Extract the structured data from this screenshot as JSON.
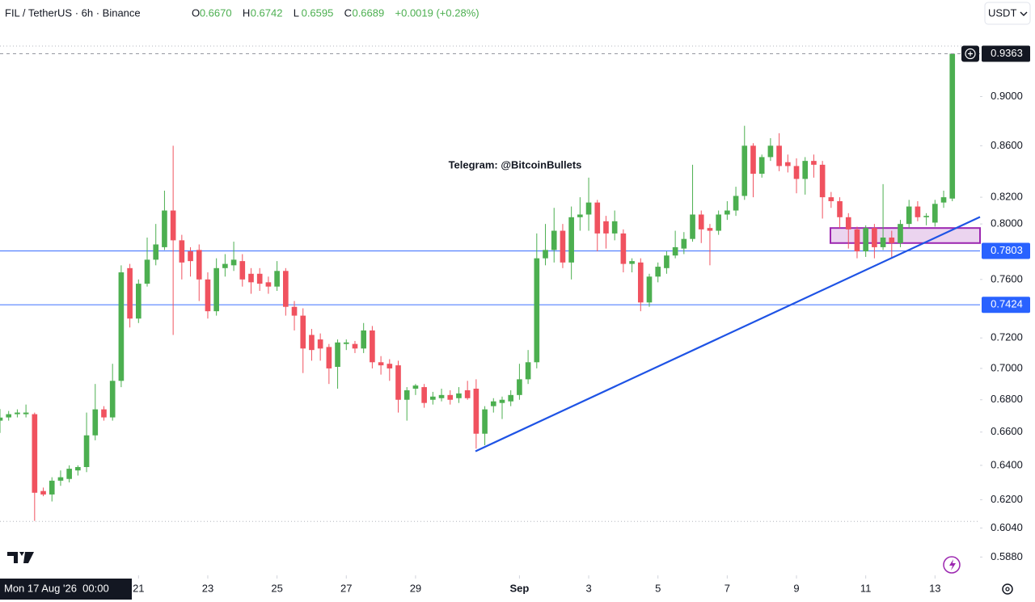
{
  "header": {
    "symbol": "FIL / TetherUS · 6h · Binance",
    "ohlc": [
      {
        "key": "O",
        "value": "0.6670"
      },
      {
        "key": "H",
        "value": "0.6742"
      },
      {
        "key": "L",
        "value": "0.6595"
      },
      {
        "key": "C",
        "value": "0.6689"
      }
    ],
    "change": "+0.0019 (+0.28%)",
    "currency": "USDT"
  },
  "chart_data": {
    "type": "candlestick",
    "log_scale": true,
    "annotation": "Telegram: @BitcoinBullets",
    "crosshair_label": "Mon 17 Aug '26  00:00",
    "up_color": "#4caf50",
    "down_color": "#f0525f",
    "xlim": [
      17,
      45.3
    ],
    "ylim": [
      0.579,
      0.984
    ],
    "xticks": [
      21,
      23,
      25,
      27,
      29,
      {
        "value": 32,
        "label": "Sep"
      },
      {
        "value": 34,
        "label": "3"
      },
      {
        "value": 36,
        "label": "5"
      },
      {
        "value": 38,
        "label": "7"
      },
      {
        "value": 40,
        "label": "9"
      },
      {
        "value": 42,
        "label": "11"
      },
      {
        "value": 44,
        "label": "13"
      }
    ],
    "yticks": [
      {
        "value": 0.9,
        "label": "0.9000"
      },
      {
        "value": 0.86,
        "label": "0.8600"
      },
      {
        "value": 0.82,
        "label": "0.8200"
      },
      {
        "value": 0.8,
        "label": "0.8000"
      },
      {
        "value": 0.76,
        "label": "0.7600"
      },
      {
        "value": 0.72,
        "label": "0.7200"
      },
      {
        "value": 0.7,
        "label": "0.7000"
      },
      {
        "value": 0.68,
        "label": "0.6800"
      },
      {
        "value": 0.66,
        "label": "0.6600"
      },
      {
        "value": 0.64,
        "label": "0.6400"
      },
      {
        "value": 0.62,
        "label": "0.6200"
      },
      {
        "value": 0.604,
        "label": "0.6040"
      },
      {
        "value": 0.588,
        "label": "0.5880"
      }
    ],
    "current_price": {
      "value": 0.9363,
      "label": "0.9363",
      "color": "#131722"
    },
    "horizontal_lines": [
      {
        "value": 0.7803,
        "label": "0.7803",
        "color": "#2962ff"
      },
      {
        "value": 0.7424,
        "label": "0.7424",
        "color": "#2962ff"
      }
    ],
    "range_lines": [
      0.943,
      0.6077
    ],
    "trendline": {
      "x": [
        30.73,
        45.3
      ],
      "y": [
        0.6484,
        0.8052
      ],
      "color": "#1e53e5"
    },
    "zone": {
      "x": [
        40.98,
        45.3
      ],
      "y": [
        0.786,
        0.797
      ],
      "color": "#9c27b0"
    },
    "x": [
      17,
      17.25,
      17.5,
      17.75,
      18,
      18.25,
      18.5,
      18.75,
      19,
      19.25,
      19.5,
      19.75,
      20,
      20.25,
      20.5,
      20.75,
      21,
      21.25,
      21.5,
      21.75,
      22,
      22.25,
      22.5,
      22.75,
      23,
      23.25,
      23.5,
      23.75,
      24,
      24.25,
      24.5,
      24.75,
      25,
      25.25,
      25.5,
      25.75,
      26,
      26.25,
      26.5,
      26.75,
      27,
      27.25,
      27.5,
      27.75,
      28,
      28.25,
      28.5,
      28.75,
      29,
      29.25,
      29.5,
      29.75,
      30,
      30.25,
      30.5,
      30.75,
      31,
      31.25,
      31.5,
      31.75,
      32,
      32.25,
      32.5,
      32.75,
      33,
      33.25,
      33.5,
      33.75,
      34,
      34.25,
      34.5,
      34.75,
      35,
      35.25,
      35.5,
      35.75,
      36,
      36.25,
      36.5,
      36.75,
      37,
      37.25,
      37.5,
      37.75,
      38,
      38.25,
      38.5,
      38.75,
      39,
      39.25,
      39.5,
      39.75,
      40,
      40.25,
      40.5,
      40.75,
      41,
      41.25,
      41.5,
      41.75,
      42,
      42.25,
      42.5,
      42.75,
      43,
      43.25,
      43.5,
      43.75,
      44,
      44.25,
      44.5
    ],
    "open": [
      0.667,
      0.669,
      0.671,
      0.671,
      0.671,
      0.625,
      0.623,
      0.631,
      0.632,
      0.637,
      0.639,
      0.658,
      0.674,
      0.669,
      0.692,
      0.768,
      0.733,
      0.757,
      0.774,
      0.783,
      0.81,
      0.788,
      0.78,
      0.781,
      0.76,
      0.738,
      0.768,
      0.77,
      0.773,
      0.764,
      0.764,
      0.758,
      0.755,
      0.766,
      0.741,
      0.735,
      0.722,
      0.719,
      0.714,
      0.701,
      0.716,
      0.716,
      0.713,
      0.725,
      0.704,
      0.703,
      0.702,
      0.68,
      0.687,
      0.688,
      0.68,
      0.681,
      0.683,
      0.681,
      0.686,
      0.687,
      0.659,
      0.676,
      0.678,
      0.679,
      0.683,
      0.693,
      0.704,
      0.775,
      0.781,
      0.795,
      0.772,
      0.805,
      0.807,
      0.816,
      0.802,
      0.793,
      0.793,
      0.771,
      0.772,
      0.744,
      0.762,
      0.768,
      0.777,
      0.782,
      0.789,
      0.807,
      0.797,
      0.795,
      0.807,
      0.81,
      0.821,
      0.86,
      0.838,
      0.851,
      0.86,
      0.847,
      0.844,
      0.834,
      0.848,
      0.845,
      0.82,
      0.817,
      0.805,
      0.796,
      0.78,
      0.797,
      0.783,
      0.79,
      0.786,
      0.8,
      0.813,
      0.805,
      0.801,
      0.816,
      0.819
    ],
    "high": [
      0.6742,
      0.673,
      0.674,
      0.677,
      0.672,
      0.627,
      0.633,
      0.637,
      0.64,
      0.64,
      0.672,
      0.69,
      0.676,
      0.703,
      0.77,
      0.771,
      0.76,
      0.79,
      0.8,
      0.825,
      0.86,
      0.792,
      0.783,
      0.785,
      0.765,
      0.775,
      0.778,
      0.787,
      0.778,
      0.768,
      0.768,
      0.762,
      0.773,
      0.768,
      0.745,
      0.74,
      0.726,
      0.723,
      0.716,
      0.719,
      0.719,
      0.718,
      0.73,
      0.728,
      0.708,
      0.706,
      0.705,
      0.688,
      0.69,
      0.69,
      0.685,
      0.687,
      0.686,
      0.688,
      0.692,
      0.693,
      0.676,
      0.681,
      0.682,
      0.686,
      0.703,
      0.712,
      0.793,
      0.8,
      0.812,
      0.8,
      0.813,
      0.82,
      0.835,
      0.818,
      0.806,
      0.81,
      0.796,
      0.775,
      0.775,
      0.764,
      0.772,
      0.78,
      0.795,
      0.794,
      0.845,
      0.81,
      0.8,
      0.81,
      0.817,
      0.828,
      0.876,
      0.862,
      0.853,
      0.866,
      0.87,
      0.853,
      0.85,
      0.851,
      0.853,
      0.848,
      0.824,
      0.82,
      0.808,
      0.798,
      0.799,
      0.8,
      0.83,
      0.795,
      0.803,
      0.818,
      0.817,
      0.808,
      0.818,
      0.825,
      0.9363
    ],
    "low": [
      0.6595,
      0.667,
      0.669,
      0.669,
      0.608,
      0.622,
      0.619,
      0.628,
      0.63,
      0.634,
      0.636,
      0.655,
      0.667,
      0.667,
      0.688,
      0.727,
      0.73,
      0.755,
      0.77,
      0.781,
      0.722,
      0.76,
      0.762,
      0.745,
      0.733,
      0.735,
      0.762,
      0.766,
      0.755,
      0.75,
      0.752,
      0.75,
      0.752,
      0.735,
      0.725,
      0.697,
      0.705,
      0.705,
      0.69,
      0.687,
      0.712,
      0.71,
      0.71,
      0.7,
      0.696,
      0.692,
      0.672,
      0.667,
      0.683,
      0.675,
      0.677,
      0.679,
      0.677,
      0.678,
      0.68,
      0.65,
      0.652,
      0.672,
      0.668,
      0.676,
      0.68,
      0.69,
      0.7,
      0.77,
      0.772,
      0.768,
      0.76,
      0.795,
      0.795,
      0.78,
      0.782,
      0.788,
      0.765,
      0.765,
      0.738,
      0.741,
      0.758,
      0.764,
      0.775,
      0.778,
      0.787,
      0.786,
      0.77,
      0.792,
      0.803,
      0.806,
      0.818,
      0.82,
      0.835,
      0.848,
      0.84,
      0.839,
      0.823,
      0.822,
      0.835,
      0.804,
      0.812,
      0.797,
      0.782,
      0.775,
      0.776,
      0.775,
      0.781,
      0.775,
      0.783,
      0.797,
      0.802,
      0.799,
      0.798,
      0.812,
      0.817
    ],
    "close": [
      0.6689,
      0.671,
      0.672,
      0.672,
      0.624,
      0.623,
      0.631,
      0.633,
      0.638,
      0.639,
      0.658,
      0.674,
      0.669,
      0.692,
      0.765,
      0.733,
      0.757,
      0.774,
      0.785,
      0.81,
      0.788,
      0.772,
      0.773,
      0.76,
      0.738,
      0.768,
      0.771,
      0.774,
      0.76,
      0.758,
      0.757,
      0.755,
      0.766,
      0.741,
      0.735,
      0.713,
      0.712,
      0.713,
      0.7,
      0.717,
      0.717,
      0.713,
      0.725,
      0.704,
      0.702,
      0.7,
      0.68,
      0.686,
      0.689,
      0.678,
      0.682,
      0.683,
      0.68,
      0.684,
      0.681,
      0.659,
      0.674,
      0.679,
      0.68,
      0.683,
      0.693,
      0.704,
      0.775,
      0.781,
      0.795,
      0.772,
      0.805,
      0.807,
      0.816,
      0.793,
      0.793,
      0.802,
      0.771,
      0.773,
      0.744,
      0.762,
      0.769,
      0.777,
      0.783,
      0.789,
      0.807,
      0.796,
      0.795,
      0.807,
      0.81,
      0.821,
      0.86,
      0.838,
      0.851,
      0.86,
      0.844,
      0.844,
      0.834,
      0.848,
      0.845,
      0.82,
      0.817,
      0.805,
      0.796,
      0.78,
      0.797,
      0.783,
      0.79,
      0.786,
      0.8,
      0.813,
      0.805,
      0.806,
      0.815,
      0.82,
      0.9363
    ]
  }
}
